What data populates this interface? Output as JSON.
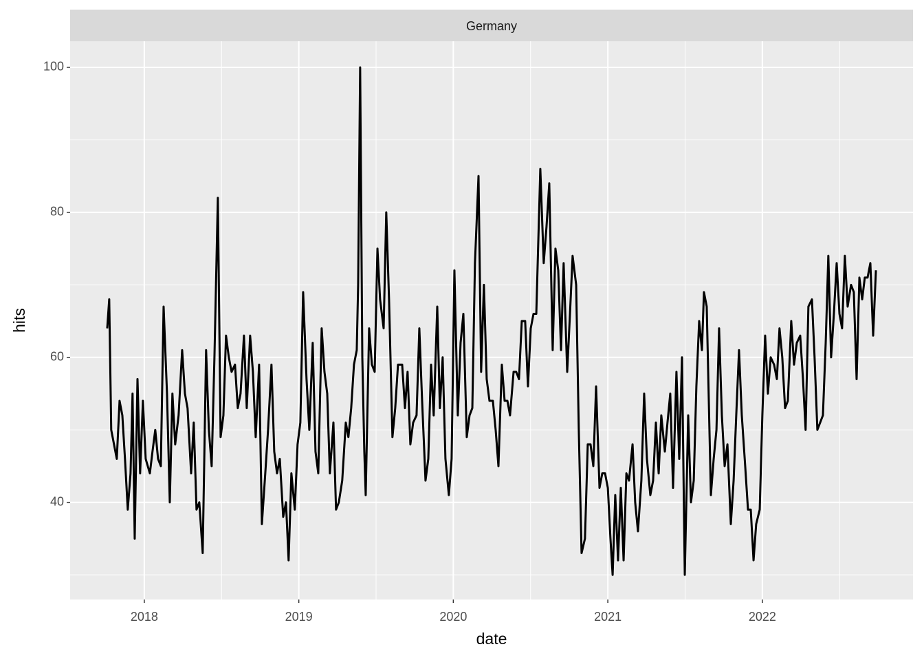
{
  "chart_data": {
    "type": "line",
    "title": "Germany",
    "x_label": "date",
    "y_label": "hits",
    "x": [
      2017.76,
      2017.773,
      2017.786,
      2017.804,
      2017.822,
      2017.84,
      2017.858,
      2017.875,
      2017.893,
      2017.911,
      2017.924,
      2017.938,
      2017.956,
      2017.973,
      2017.991,
      2018.009,
      2018.036,
      2018.053,
      2018.071,
      2018.089,
      2018.107,
      2018.125,
      2018.147,
      2018.165,
      2018.182,
      2018.2,
      2018.222,
      2018.245,
      2018.263,
      2018.28,
      2018.303,
      2018.32,
      2018.338,
      2018.356,
      2018.378,
      2018.4,
      2018.418,
      2018.436,
      2018.454,
      2018.476,
      2018.494,
      2018.512,
      2018.529,
      2018.547,
      2018.565,
      2018.587,
      2018.605,
      2018.623,
      2018.645,
      2018.663,
      2018.685,
      2018.703,
      2018.721,
      2018.743,
      2018.761,
      2018.783,
      2018.801,
      2018.823,
      2018.841,
      2018.859,
      2018.877,
      2018.899,
      2018.917,
      2018.934,
      2018.952,
      2018.974,
      2018.992,
      2019.01,
      2019.028,
      2019.05,
      2019.068,
      2019.09,
      2019.108,
      2019.126,
      2019.148,
      2019.166,
      2019.184,
      2019.201,
      2019.224,
      2019.241,
      2019.259,
      2019.281,
      2019.304,
      2019.321,
      2019.339,
      2019.357,
      2019.375,
      2019.384,
      2019.397,
      2019.411,
      2019.424,
      2019.433,
      2019.455,
      2019.473,
      2019.491,
      2019.509,
      2019.526,
      2019.549,
      2019.566,
      2019.584,
      2019.606,
      2019.624,
      2019.642,
      2019.669,
      2019.687,
      2019.704,
      2019.722,
      2019.74,
      2019.762,
      2019.78,
      2019.798,
      2019.82,
      2019.838,
      2019.856,
      2019.873,
      2019.896,
      2019.913,
      2019.931,
      2019.949,
      2019.971,
      2019.989,
      2020.007,
      2020.029,
      2020.047,
      2020.065,
      2020.087,
      2020.105,
      2020.123,
      2020.14,
      2020.163,
      2020.18,
      2020.198,
      2020.216,
      2020.234,
      2020.256,
      2020.274,
      2020.292,
      2020.314,
      2020.332,
      2020.35,
      2020.367,
      2020.39,
      2020.407,
      2020.425,
      2020.443,
      2020.465,
      2020.483,
      2020.501,
      2020.519,
      2020.537,
      2020.563,
      2020.585,
      2020.603,
      2020.621,
      2020.643,
      2020.661,
      2020.679,
      2020.697,
      2020.714,
      2020.737,
      2020.755,
      2020.772,
      2020.795,
      2020.812,
      2020.83,
      2020.852,
      2020.87,
      2020.888,
      2020.906,
      2020.924,
      2020.946,
      2020.964,
      2020.982,
      2021.0,
      2021.017,
      2021.031,
      2021.048,
      2021.066,
      2021.084,
      2021.102,
      2021.12,
      2021.137,
      2021.16,
      2021.177,
      2021.195,
      2021.217,
      2021.235,
      2021.253,
      2021.275,
      2021.293,
      2021.311,
      2021.329,
      2021.346,
      2021.369,
      2021.386,
      2021.404,
      2021.422,
      2021.444,
      2021.462,
      2021.48,
      2021.498,
      2021.52,
      2021.538,
      2021.556,
      2021.573,
      2021.591,
      2021.609,
      2021.622,
      2021.64,
      2021.667,
      2021.685,
      2021.703,
      2021.72,
      2021.738,
      2021.756,
      2021.774,
      2021.796,
      2021.814,
      2021.831,
      2021.849,
      2021.867,
      2021.889,
      2021.907,
      2021.925,
      2021.943,
      2021.96,
      2021.983,
      2022.0,
      2022.018,
      2022.036,
      2022.054,
      2022.076,
      2022.094,
      2022.111,
      2022.129,
      2022.147,
      2022.165,
      2022.187,
      2022.205,
      2022.223,
      2022.245,
      2022.263,
      2022.28,
      2022.298,
      2022.321,
      2022.338,
      2022.356,
      2022.374,
      2022.392,
      2022.41,
      2022.427,
      2022.445,
      2022.463,
      2022.481,
      2022.499,
      2022.516,
      2022.534,
      2022.552,
      2022.574,
      2022.592,
      2022.61,
      2022.628,
      2022.646,
      2022.663,
      2022.681,
      2022.699,
      2022.717,
      2022.735
    ],
    "series": [
      {
        "color": "#000000",
        "values": [
          64,
          68,
          50,
          48,
          46,
          54,
          52,
          46,
          39,
          44,
          55,
          35,
          57,
          44,
          54,
          46,
          44,
          47,
          50,
          46,
          45,
          67,
          55,
          40,
          55,
          48,
          52,
          61,
          55,
          53,
          44,
          51,
          39,
          40,
          33,
          61,
          50,
          45,
          60,
          82,
          49,
          52,
          63,
          60,
          58,
          59,
          53,
          55,
          63,
          53,
          63,
          58,
          49,
          59,
          37,
          44,
          50,
          59,
          47,
          44,
          46,
          38,
          40,
          32,
          44,
          39,
          48,
          51,
          69,
          57,
          50,
          62,
          47,
          44,
          64,
          58,
          55,
          44,
          51,
          39,
          40,
          43,
          51,
          49,
          53,
          59,
          61,
          70,
          100,
          60,
          47,
          41,
          64,
          59,
          58,
          75,
          68,
          64,
          80,
          68,
          49,
          53,
          59,
          59,
          53,
          58,
          48,
          51,
          52,
          64,
          54,
          43,
          46,
          59,
          52,
          67,
          53,
          60,
          46,
          41,
          46,
          72,
          52,
          62,
          66,
          49,
          52,
          53,
          73,
          85,
          58,
          70,
          57,
          54,
          54,
          50,
          45,
          59,
          54,
          54,
          52,
          58,
          58,
          57,
          65,
          65,
          56,
          64,
          66,
          66,
          86,
          73,
          78,
          84,
          61,
          75,
          72,
          61,
          73,
          58,
          66,
          74,
          70,
          50,
          33,
          35,
          48,
          48,
          45,
          56,
          42,
          44,
          44,
          42,
          35,
          30,
          41,
          32,
          42,
          32,
          44,
          43,
          48,
          40,
          36,
          43,
          55,
          46,
          41,
          43,
          51,
          44,
          52,
          47,
          51,
          55,
          42,
          58,
          46,
          60,
          30,
          52,
          40,
          43,
          56,
          65,
          61,
          69,
          67,
          41,
          46,
          50,
          64,
          52,
          45,
          48,
          37,
          43,
          52,
          61,
          52,
          45,
          39,
          39,
          32,
          37,
          39,
          52,
          63,
          55,
          60,
          59,
          57,
          64,
          60,
          53,
          54,
          65,
          59,
          62,
          63,
          57,
          50,
          67,
          68,
          60,
          50,
          51,
          52,
          62,
          74,
          60,
          66,
          73,
          66,
          64,
          74,
          67,
          70,
          69,
          57,
          71,
          68,
          71,
          71,
          73,
          63,
          72
        ]
      }
    ],
    "xlim": [
      2017.52,
      2022.975
    ],
    "xticks": [
      2018,
      2019,
      2020,
      2021,
      2022
    ],
    "ylim": [
      26.6,
      103.6
    ],
    "yticks": [
      40,
      60,
      80,
      100
    ],
    "grid": true
  }
}
